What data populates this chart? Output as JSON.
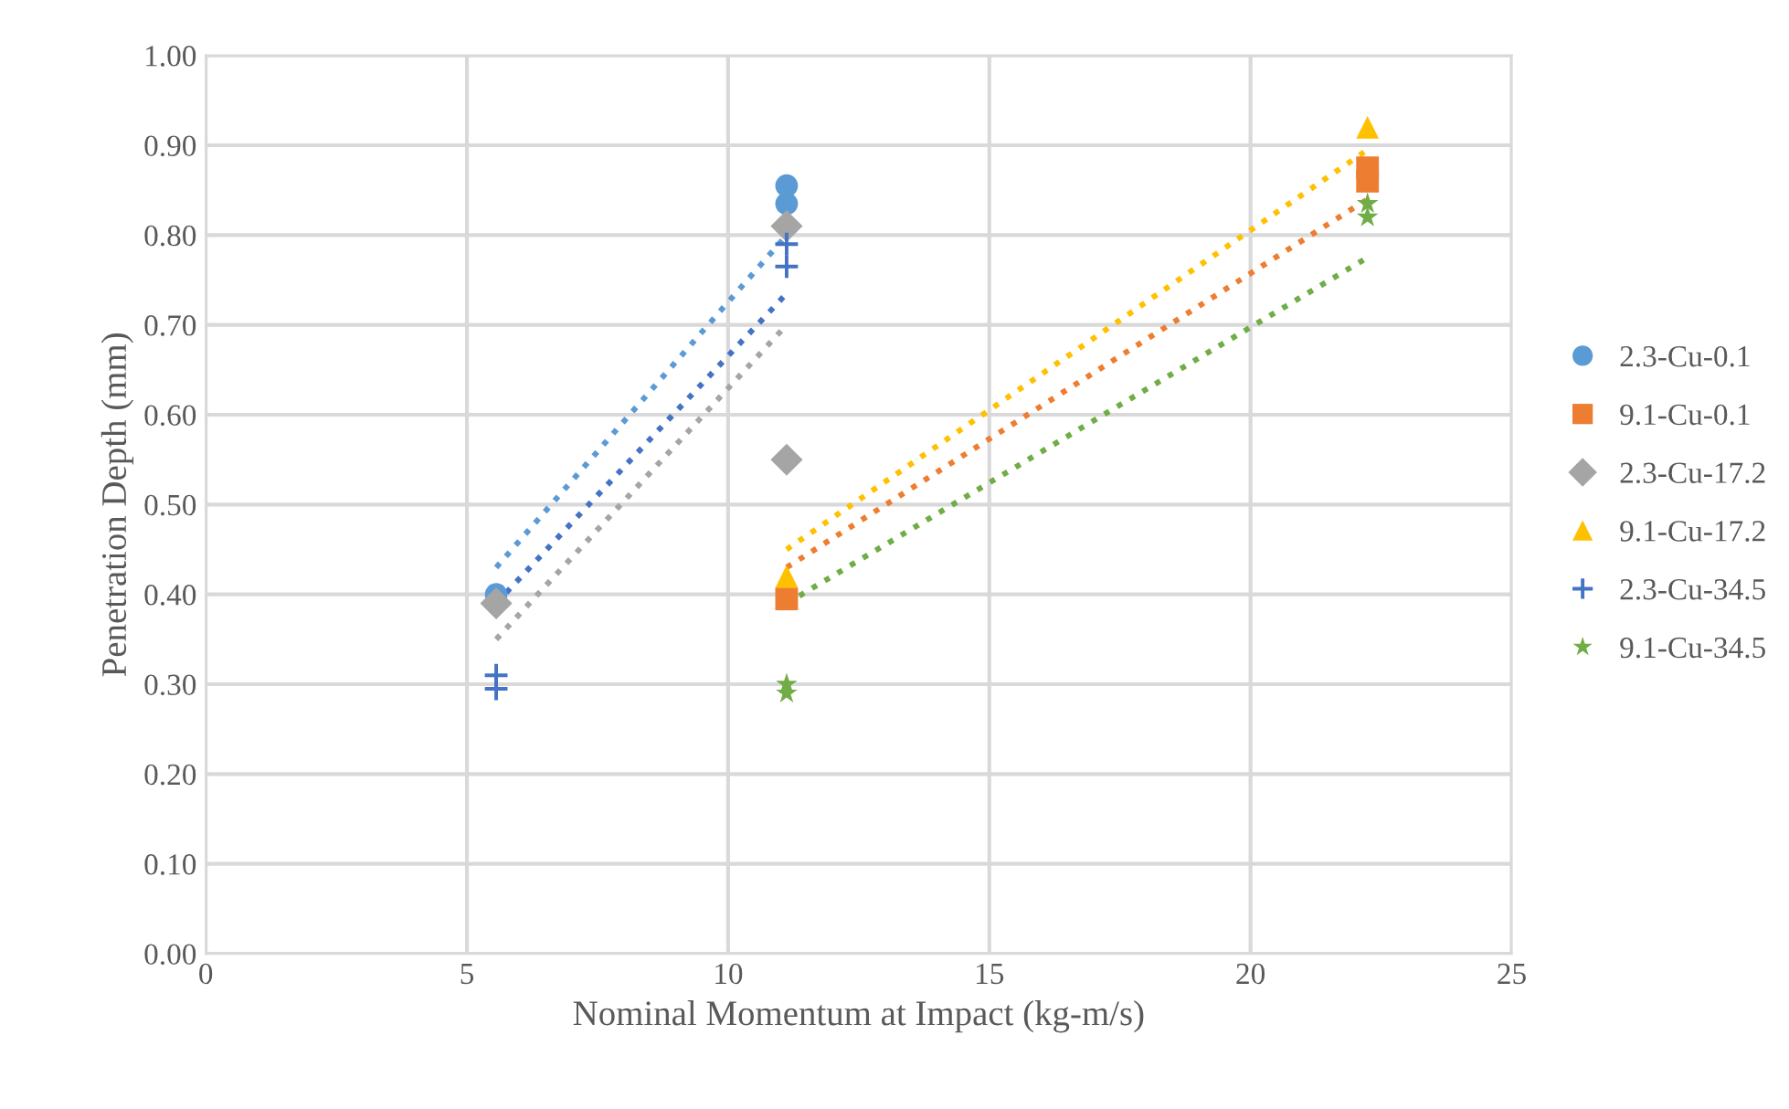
{
  "chart_data": {
    "type": "scatter",
    "xlabel": "Nominal Momentum at Impact (kg-m/s)",
    "ylabel": "Penetration Depth (mm)",
    "xlim": [
      0,
      25
    ],
    "xticks": [
      0,
      5,
      10,
      15,
      20,
      25
    ],
    "ylim": [
      0,
      1
    ],
    "yticks": [
      {
        "value": 0,
        "label": "0.00"
      },
      {
        "value": 0.1,
        "label": "0.10"
      },
      {
        "value": 0.2,
        "label": "0.20"
      },
      {
        "value": 0.3,
        "label": "0.30"
      },
      {
        "value": 0.4,
        "label": "0.40"
      },
      {
        "value": 0.5,
        "label": "0.50"
      },
      {
        "value": 0.6,
        "label": "0.60"
      },
      {
        "value": 0.7,
        "label": "0.70"
      },
      {
        "value": 0.8,
        "label": "0.80"
      },
      {
        "value": 0.9,
        "label": "0.90"
      },
      {
        "value": 1,
        "label": "1.00"
      }
    ],
    "grid": true,
    "legend": "right",
    "series": [
      {
        "type": "line",
        "color": "#5b9bd5",
        "line_style": "dotted",
        "marker": "none",
        "x": [
          5.56,
          11.12
        ],
        "values": [
          0.43,
          0.8
        ]
      },
      {
        "type": "line",
        "color": "#4472c4",
        "line_style": "dotted",
        "marker": "none",
        "x": [
          5.56,
          11.12
        ],
        "values": [
          0.39,
          0.735
        ]
      },
      {
        "type": "line",
        "color": "#a5a5a5",
        "line_style": "dotted",
        "marker": "none",
        "x": [
          5.56,
          11.12
        ],
        "values": [
          0.35,
          0.7
        ]
      },
      {
        "type": "line",
        "color": "#ffc000",
        "line_style": "dotted",
        "marker": "none",
        "x": [
          11.12,
          22.24
        ],
        "values": [
          0.45,
          0.895
        ]
      },
      {
        "type": "line",
        "color": "#ed7d31",
        "line_style": "dotted",
        "marker": "none",
        "x": [
          11.12,
          22.24
        ],
        "values": [
          0.43,
          0.84
        ]
      },
      {
        "type": "line",
        "color": "#70ad47",
        "line_style": "dotted",
        "marker": "none",
        "x": [
          11.12,
          22.24
        ],
        "values": [
          0.39,
          0.775
        ]
      },
      {
        "name": "2.3-Cu-0.1",
        "color": "#5b9bd5",
        "marker": "circle",
        "x": [
          5.56,
          11.12,
          11.12
        ],
        "values": [
          0.4,
          0.855,
          0.835
        ]
      },
      {
        "name": "9.1-Cu-0.1",
        "color": "#ed7d31",
        "marker": "square",
        "x": [
          11.12,
          22.24,
          22.24
        ],
        "values": [
          0.395,
          0.875,
          0.86
        ]
      },
      {
        "name": "2.3-Cu-17.2",
        "color": "#a5a5a5",
        "marker": "diamond",
        "x": [
          5.56,
          11.12,
          11.12
        ],
        "values": [
          0.39,
          0.81,
          0.55
        ]
      },
      {
        "name": "9.1-Cu-17.2",
        "color": "#ffc000",
        "marker": "triangle",
        "x": [
          11.12,
          22.24
        ],
        "values": [
          0.42,
          0.92
        ]
      },
      {
        "name": "2.3-Cu-34.5",
        "color": "#4472c4",
        "marker": "cross",
        "x": [
          5.56,
          5.56,
          11.12,
          11.12
        ],
        "values": [
          0.31,
          0.295,
          0.79,
          0.765
        ]
      },
      {
        "name": "9.1-Cu-34.5",
        "color": "#70ad47",
        "marker": "star",
        "x": [
          11.12,
          11.12,
          22.24,
          22.24
        ],
        "values": [
          0.3,
          0.29,
          0.835,
          0.82
        ]
      }
    ]
  }
}
